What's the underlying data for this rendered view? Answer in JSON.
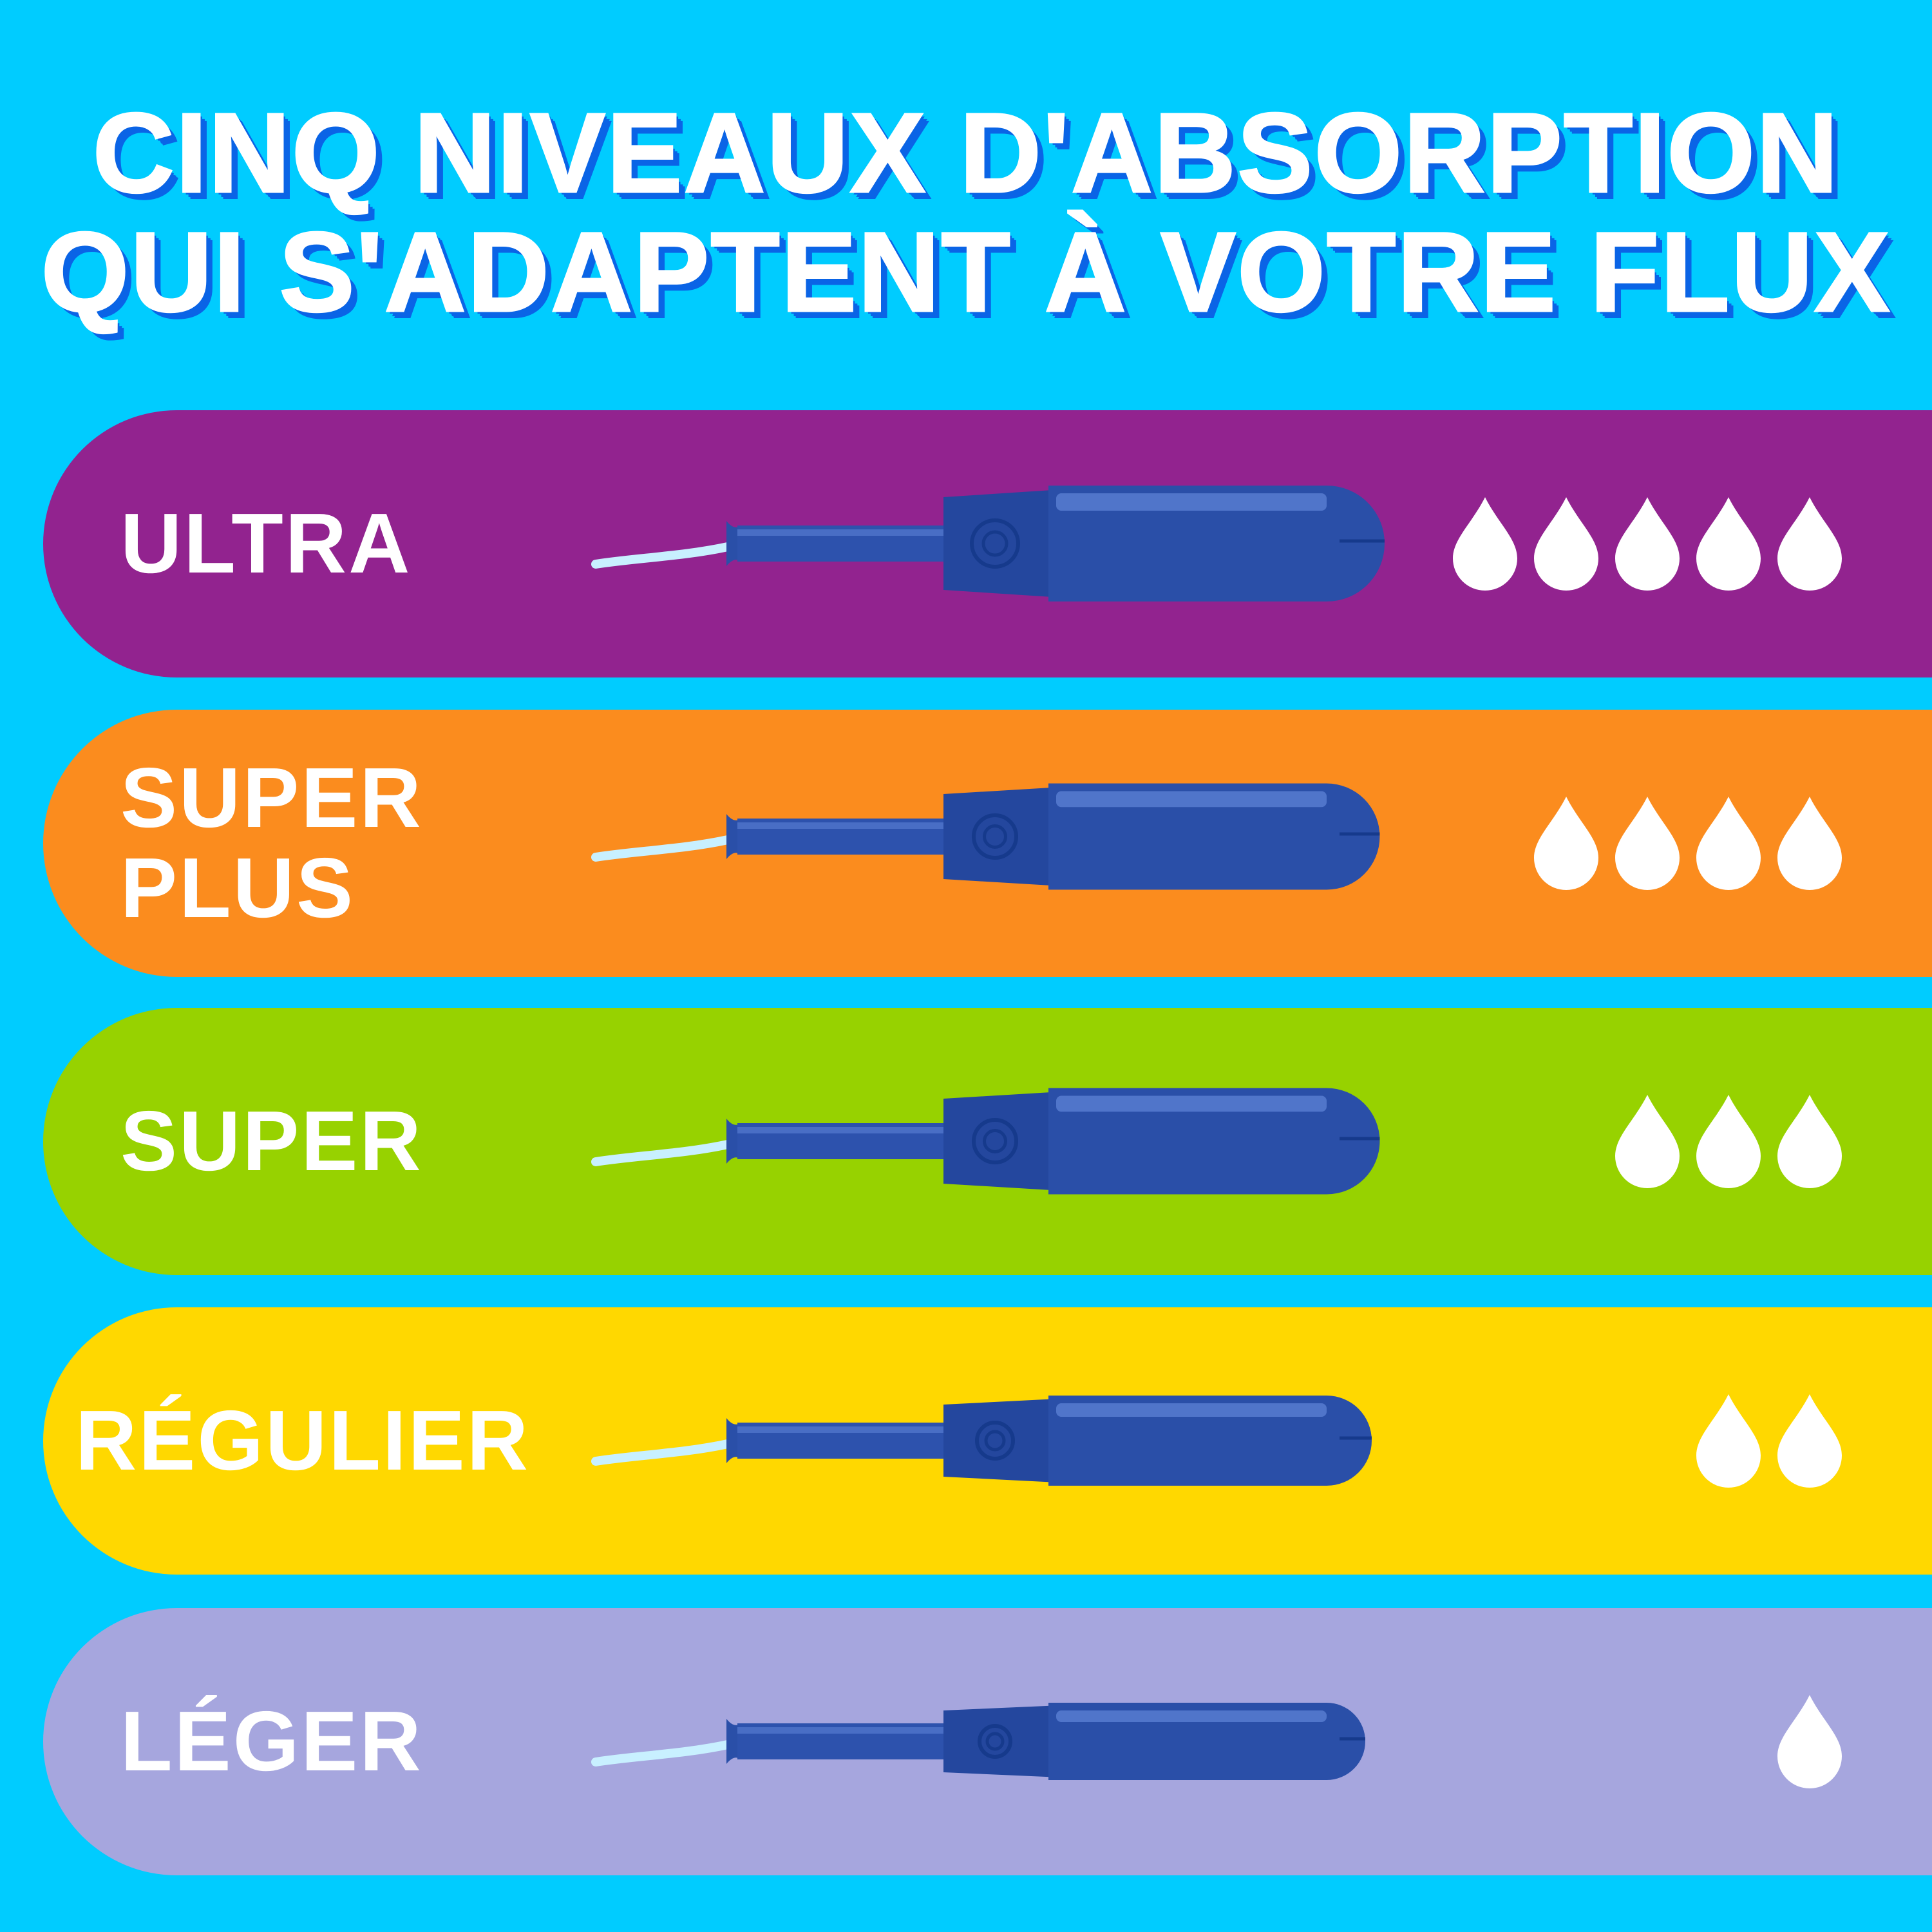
{
  "title": {
    "line1": "CINQ NIVEAUX D'ABSORPTION",
    "line2": "QUI S'ADAPTENT À VOTRE FLUX"
  },
  "colors": {
    "background": "#00ccff",
    "title_shadow": "#0a64e6",
    "tampon": "#2a4fa8",
    "drop": "#ffffff"
  },
  "levels": [
    {
      "label": "ULTRA",
      "drops": 5,
      "color": "#92238f"
    },
    {
      "label": "SUPER\nPLUS",
      "drops": 4,
      "color": "#fb8c1e"
    },
    {
      "label": "SUPER",
      "drops": 3,
      "color": "#97d200"
    },
    {
      "label": "RÉGULIER",
      "drops": 2,
      "color": "#ffd800"
    },
    {
      "label": "LÉGER",
      "drops": 1,
      "color": "#a6a6de"
    }
  ]
}
